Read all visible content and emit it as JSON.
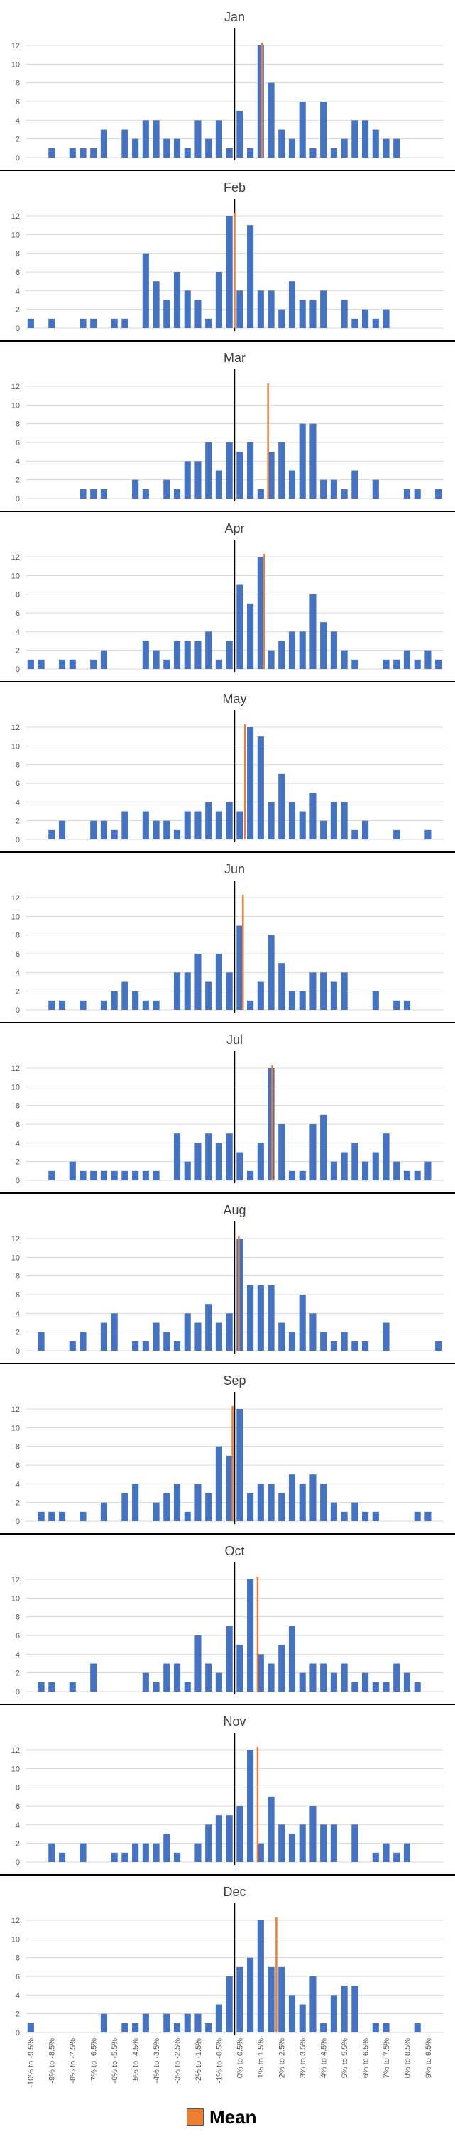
{
  "colors": {
    "bar": "#4472C4",
    "mean": "#ED7D31",
    "divider": "#000000",
    "grid": "#d9d9d9",
    "text": "#595959"
  },
  "legend": {
    "label": "Mean"
  },
  "chart_data": {
    "type": "bar",
    "grid": true,
    "ylim": [
      0,
      12
    ],
    "yticks": [
      "0",
      "2",
      "4",
      "6",
      "8",
      "10",
      "12"
    ],
    "categories": [
      "-10% to -9.5%",
      "-9.5% to -9%",
      "-9% to -8.5%",
      "-8.5% to -8%",
      "-8% to -7.5%",
      "-7.5% to -7%",
      "-7% to -6.5%",
      "-6.5% to -6%",
      "-6% to -5.5%",
      "-5.5% to -5%",
      "-5% to -4.5%",
      "-4.5% to -4%",
      "-4% to -3.5%",
      "-3.5% to -3%",
      "-3% to -2.5%",
      "-2.5% to -2%",
      "-2% to -1.5%",
      "-1.5% to -1%",
      "-1% to -0.5%",
      "-0.5% to 0%",
      "0% to 0.5%",
      "0.5% to 1%",
      "1% to 1.5%",
      "1.5% to 2%",
      "2% to 2.5%",
      "2.5% to 3%",
      "3% to 3.5%",
      "3.5% to 4%",
      "4% to 4.5%",
      "4.5% to 5%",
      "5% to 5.5%",
      "5.5% to 6%",
      "6% to 6.5%",
      "6.5% to 7%",
      "7% to 7.5%",
      "7.5% to 8%",
      "8% to 8.5%",
      "8.5% to 9%",
      "9% to 9.5%",
      "9.5% to 10%"
    ],
    "xtick_labels": [
      "-10% to -9.5%",
      "-9% to -8.5%",
      "-8% to -7.5%",
      "-7% to -6.5%",
      "-6% to -5.5%",
      "-5% to -4.5%",
      "-4% to -3.5%",
      "-3% to -2.5%",
      "-2% to -1.5%",
      "-1% to -0.5%",
      "0% to 0.5%",
      "1% to 1.5%",
      "2% to 2.5%",
      "3% to 3.5%",
      "4% to 4.5%",
      "5% to 5.5%",
      "6% to 6.5%",
      "7% to 7.5%",
      "8% to 8.5%",
      "9% to 9.5%"
    ],
    "panels": [
      {
        "title": "Jan",
        "values": [
          0,
          0,
          1,
          0,
          1,
          1,
          1,
          3,
          0,
          3,
          2,
          4,
          4,
          2,
          2,
          1,
          4,
          2,
          4,
          1,
          5,
          1,
          12,
          8,
          3,
          2,
          6,
          1,
          6,
          1,
          2,
          4,
          4,
          3,
          2,
          2,
          0,
          0,
          0,
          0
        ],
        "mean": 1.3
      },
      {
        "title": "Feb",
        "values": [
          1,
          0,
          1,
          0,
          0,
          1,
          1,
          0,
          1,
          1,
          0,
          8,
          5,
          3,
          6,
          4,
          3,
          1,
          6,
          12,
          4,
          11,
          4,
          4,
          2,
          5,
          3,
          3,
          4,
          0,
          3,
          1,
          2,
          1,
          2,
          0,
          0,
          0,
          0,
          0
        ],
        "mean": 0.0
      },
      {
        "title": "Mar",
        "values": [
          0,
          0,
          0,
          0,
          0,
          1,
          1,
          1,
          0,
          0,
          2,
          1,
          0,
          2,
          1,
          4,
          4,
          6,
          3,
          6,
          5,
          6,
          1,
          5,
          6,
          3,
          8,
          8,
          2,
          2,
          1,
          3,
          0,
          2,
          0,
          0,
          1,
          1,
          0,
          1
        ],
        "mean": 1.6
      },
      {
        "title": "Apr",
        "values": [
          1,
          1,
          0,
          1,
          1,
          0,
          1,
          2,
          0,
          0,
          0,
          3,
          2,
          1,
          3,
          3,
          3,
          4,
          1,
          3,
          9,
          7,
          12,
          2,
          3,
          4,
          4,
          8,
          5,
          4,
          2,
          1,
          0,
          0,
          1,
          1,
          2,
          1,
          2,
          1
        ],
        "mean": 1.4
      },
      {
        "title": "May",
        "values": [
          0,
          0,
          1,
          2,
          0,
          0,
          2,
          2,
          1,
          3,
          0,
          3,
          2,
          2,
          1,
          3,
          3,
          4,
          3,
          4,
          3,
          12,
          11,
          4,
          7,
          4,
          3,
          5,
          2,
          4,
          4,
          1,
          2,
          0,
          0,
          1,
          0,
          0,
          1,
          0
        ],
        "mean": 0.5
      },
      {
        "title": "Jun",
        "values": [
          0,
          0,
          1,
          1,
          0,
          1,
          0,
          1,
          2,
          3,
          2,
          1,
          1,
          0,
          4,
          4,
          6,
          3,
          6,
          4,
          9,
          1,
          3,
          8,
          5,
          2,
          2,
          4,
          4,
          3,
          4,
          0,
          0,
          2,
          0,
          1,
          1,
          0,
          0,
          0
        ],
        "mean": 0.4
      },
      {
        "title": "Jul",
        "values": [
          0,
          0,
          1,
          0,
          2,
          1,
          1,
          1,
          1,
          1,
          1,
          1,
          1,
          0,
          5,
          2,
          4,
          5,
          4,
          5,
          3,
          1,
          4,
          12,
          6,
          1,
          1,
          6,
          7,
          2,
          3,
          4,
          2,
          3,
          5,
          2,
          1,
          1,
          2,
          0
        ],
        "mean": 1.8
      },
      {
        "title": "Aug",
        "values": [
          0,
          2,
          0,
          0,
          1,
          2,
          0,
          3,
          4,
          0,
          1,
          1,
          3,
          2,
          1,
          4,
          3,
          5,
          3,
          4,
          12,
          7,
          7,
          7,
          3,
          2,
          6,
          4,
          2,
          1,
          2,
          1,
          1,
          0,
          3,
          0,
          0,
          0,
          0,
          1
        ],
        "mean": 0.2
      },
      {
        "title": "Sep",
        "values": [
          0,
          1,
          1,
          1,
          0,
          1,
          0,
          2,
          0,
          3,
          4,
          0,
          2,
          3,
          4,
          1,
          4,
          3,
          8,
          7,
          12,
          3,
          4,
          4,
          3,
          5,
          4,
          5,
          4,
          2,
          1,
          2,
          1,
          1,
          0,
          0,
          0,
          1,
          1,
          0
        ],
        "mean": -0.1
      },
      {
        "title": "Oct",
        "values": [
          0,
          1,
          1,
          0,
          1,
          0,
          3,
          0,
          0,
          0,
          0,
          2,
          1,
          3,
          3,
          1,
          6,
          3,
          2,
          7,
          5,
          12,
          4,
          3,
          5,
          7,
          2,
          3,
          3,
          2,
          3,
          1,
          2,
          1,
          1,
          3,
          2,
          1,
          0,
          0
        ],
        "mean": 1.1
      },
      {
        "title": "Nov",
        "values": [
          0,
          0,
          2,
          1,
          0,
          2,
          0,
          0,
          1,
          1,
          2,
          2,
          2,
          3,
          1,
          0,
          2,
          4,
          5,
          5,
          6,
          12,
          2,
          7,
          4,
          3,
          4,
          6,
          4,
          4,
          0,
          4,
          0,
          1,
          2,
          1,
          2,
          0,
          0,
          0
        ],
        "mean": 1.1
      },
      {
        "title": "Dec",
        "values": [
          1,
          0,
          0,
          0,
          0,
          0,
          0,
          2,
          0,
          1,
          1,
          2,
          0,
          2,
          1,
          2,
          2,
          1,
          3,
          6,
          7,
          8,
          12,
          7,
          7,
          4,
          3,
          6,
          1,
          4,
          5,
          5,
          0,
          1,
          1,
          0,
          0,
          1,
          0,
          0
        ],
        "mean": 2.0
      }
    ]
  }
}
